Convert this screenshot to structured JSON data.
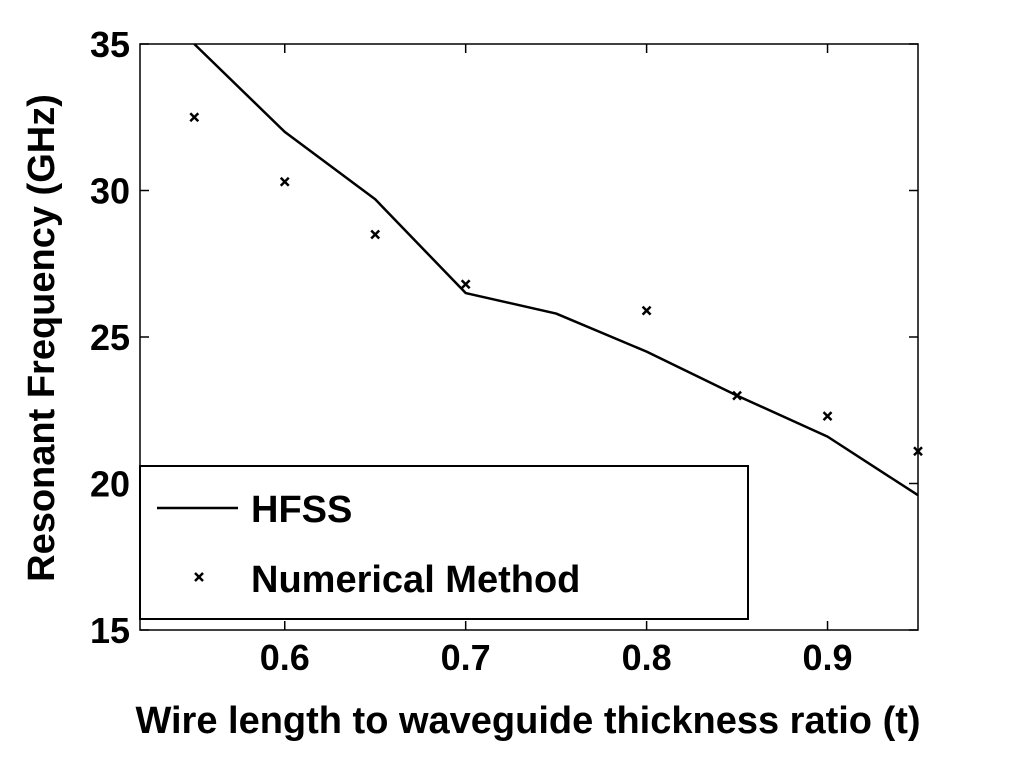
{
  "chart_data": {
    "type": "line",
    "title": "",
    "xlabel": "Wire length to waveguide thickness ratio (t)",
    "ylabel": "Resonant Frequency (GHz)",
    "xlim": [
      0.52,
      0.95
    ],
    "ylim": [
      15,
      35
    ],
    "xticks": [
      0.6,
      0.7,
      0.8,
      0.9
    ],
    "xtick_labels": [
      "0.6",
      "0.7",
      "0.8",
      "0.9"
    ],
    "yticks": [
      15,
      20,
      25,
      30,
      35
    ],
    "ytick_labels": [
      "15",
      "20",
      "25",
      "30",
      "35"
    ],
    "grid": false,
    "legend_position": "bottom-left",
    "series": [
      {
        "name": "HFSS",
        "style": "solid-line",
        "color": "#000000",
        "x": [
          0.55,
          0.6,
          0.65,
          0.7,
          0.75,
          0.8,
          0.85,
          0.9,
          0.95
        ],
        "y": [
          35.0,
          32.0,
          29.7,
          26.5,
          25.8,
          24.5,
          23.0,
          21.6,
          19.6
        ]
      },
      {
        "name": "Numerical Method",
        "style": "x-marker",
        "color": "#000000",
        "x": [
          0.55,
          0.6,
          0.65,
          0.7,
          0.8,
          0.85,
          0.9,
          0.95
        ],
        "y": [
          32.5,
          30.3,
          28.5,
          26.8,
          25.9,
          23.0,
          22.3,
          21.1
        ]
      }
    ]
  }
}
